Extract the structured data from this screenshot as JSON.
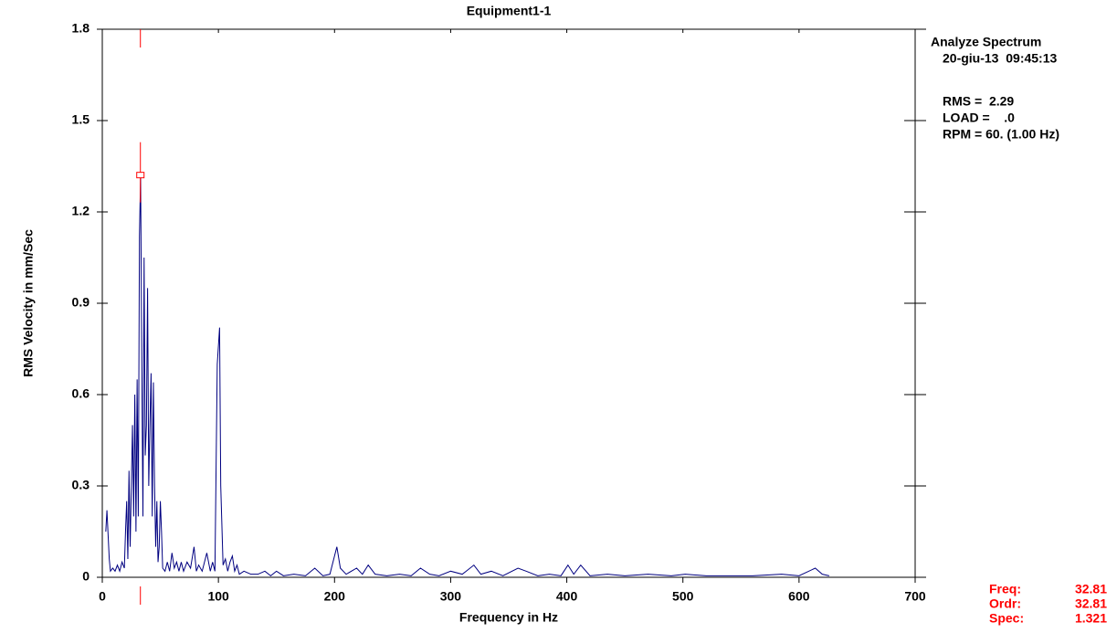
{
  "chart_data": {
    "type": "line",
    "title": "Equipment1-1",
    "x_label": "Frequency in Hz",
    "y_label": "RMS Velocity in mm/Sec",
    "x": [
      3,
      4,
      5,
      6,
      7,
      9,
      11,
      13,
      15,
      17,
      19,
      20,
      21,
      22,
      23,
      24,
      25,
      26,
      27,
      28,
      29,
      30,
      31,
      32,
      33,
      34,
      35,
      36,
      37,
      38,
      39,
      40,
      41,
      42,
      43,
      44,
      45,
      46,
      47,
      48,
      49,
      50,
      51,
      52,
      54,
      56,
      58,
      60,
      62,
      64,
      66,
      68,
      70,
      73,
      76,
      79,
      81,
      83,
      86,
      90,
      93,
      95,
      97,
      99,
      101,
      102,
      104,
      106,
      108,
      110,
      112,
      114,
      116,
      118,
      122,
      128,
      134,
      140,
      145,
      150,
      156,
      165,
      175,
      183,
      190,
      196,
      200,
      202,
      205,
      210,
      219,
      224,
      229,
      235,
      245,
      256,
      266,
      274,
      282,
      290,
      300,
      310,
      320,
      326,
      335,
      345,
      358,
      365,
      375,
      385,
      395,
      401,
      406,
      412,
      420,
      435,
      450,
      470,
      490,
      502,
      520,
      540,
      560,
      585,
      600,
      614,
      620,
      626
    ],
    "series": [
      {
        "name": "Spectrum",
        "color": "#000080",
        "values": [
          0.15,
          0.22,
          0.14,
          0.06,
          0.02,
          0.03,
          0.02,
          0.04,
          0.02,
          0.05,
          0.03,
          0.15,
          0.25,
          0.06,
          0.35,
          0.1,
          0.3,
          0.5,
          0.2,
          0.6,
          0.15,
          0.65,
          0.2,
          1.12,
          1.32,
          0.7,
          0.2,
          1.05,
          0.4,
          0.5,
          0.95,
          0.3,
          0.5,
          0.67,
          0.2,
          0.64,
          0.3,
          0.1,
          0.25,
          0.05,
          0.1,
          0.25,
          0.15,
          0.03,
          0.02,
          0.05,
          0.02,
          0.08,
          0.03,
          0.05,
          0.02,
          0.05,
          0.02,
          0.05,
          0.03,
          0.1,
          0.02,
          0.04,
          0.02,
          0.08,
          0.02,
          0.05,
          0.02,
          0.7,
          0.82,
          0.3,
          0.04,
          0.06,
          0.02,
          0.05,
          0.07,
          0.02,
          0.04,
          0.01,
          0.02,
          0.01,
          0.01,
          0.02,
          0.005,
          0.02,
          0.005,
          0.01,
          0.005,
          0.03,
          0.005,
          0.01,
          0.07,
          0.1,
          0.03,
          0.01,
          0.03,
          0.01,
          0.04,
          0.01,
          0.005,
          0.01,
          0.005,
          0.03,
          0.01,
          0.005,
          0.02,
          0.01,
          0.04,
          0.01,
          0.02,
          0.005,
          0.03,
          0.02,
          0.005,
          0.01,
          0.005,
          0.04,
          0.01,
          0.04,
          0.005,
          0.01,
          0.005,
          0.01,
          0.005,
          0.01,
          0.005,
          0.005,
          0.005,
          0.01,
          0.005,
          0.03,
          0.01,
          0.005
        ]
      }
    ],
    "xlim": [
      0,
      700
    ],
    "xticks": [
      0,
      100,
      200,
      300,
      400,
      500,
      600,
      700
    ],
    "ylim": [
      0,
      1.8
    ],
    "yticks": [
      0,
      0.3,
      0.6,
      0.9,
      1.2,
      1.5,
      1.8
    ],
    "info": [
      "Analyze Spectrum",
      "20-giu-13  09:45:13",
      "RMS =  2.29",
      "LOAD =    .0",
      "RPM = 60. (1.00 Hz)"
    ],
    "cursor": {
      "color": "#ff0000",
      "labels": [
        "Freq:",
        "Ordr:",
        "Spec:"
      ],
      "freq": 32.81,
      "order": 32.81,
      "spec": 1.321
    }
  }
}
